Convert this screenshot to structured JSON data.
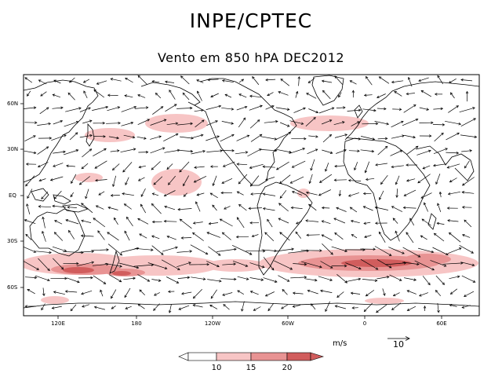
{
  "header": {
    "title": "INPE/CPTEC",
    "subtitle": "Vento em 850 hPA DEC2012"
  },
  "axes": {
    "lat_labels": [
      "60N",
      "30N",
      "EQ",
      "30S",
      "60S"
    ],
    "lon_labels": [
      "120E",
      "180",
      "120W",
      "60W",
      "0",
      "60E"
    ]
  },
  "legend": {
    "units": "m/s",
    "reference_vector": "10",
    "thresholds": [
      "10",
      "15",
      "20"
    ],
    "colors": [
      "#ffffff",
      "#f7c5c5",
      "#e89393",
      "#d15d5d"
    ]
  },
  "colors": {
    "shade_light": "#f7c5c5",
    "shade_mid": "#e89393",
    "shade_dark": "#d15d5d",
    "coast": "#000000"
  }
}
